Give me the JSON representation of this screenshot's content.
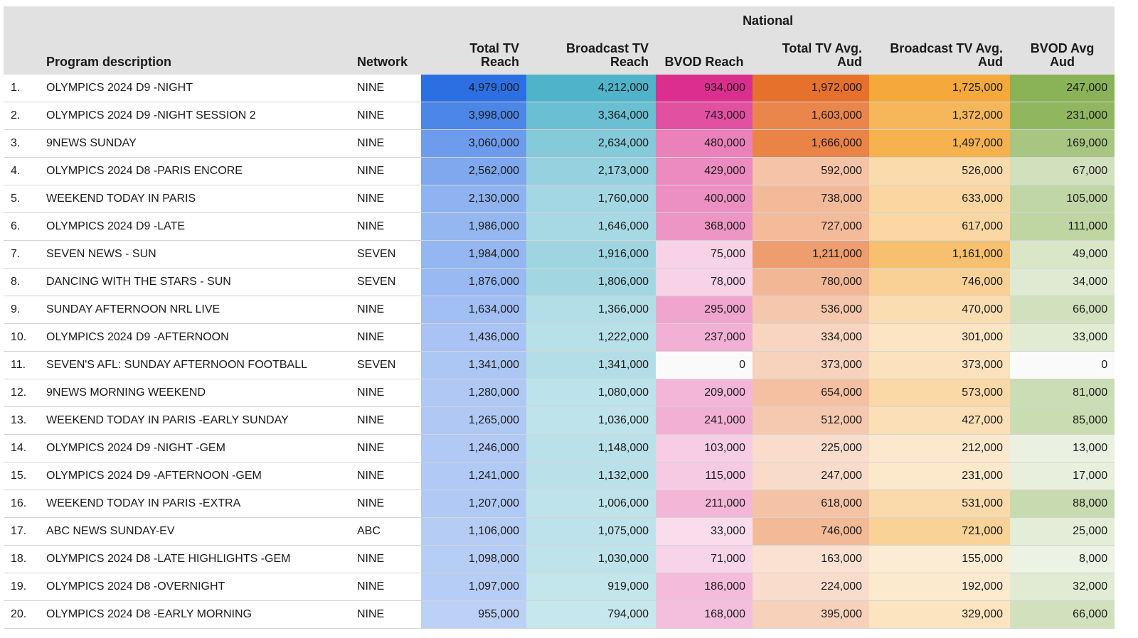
{
  "group_header": "National",
  "columns": [
    "Program description",
    "Network",
    "Total TV Reach",
    "Broadcast TV Reach",
    "BVOD Reach",
    "Total TV Avg. Aud",
    "Broadcast TV Avg. Aud",
    "BVOD Avg Aud"
  ],
  "column_colors": [
    "#2b6fe3",
    "#4fb3c9",
    "#dc2e8e",
    "#e6712c",
    "#f4a93a",
    "#8ab256"
  ],
  "rows": [
    {
      "rank": "1.",
      "program": "OLYMPICS 2024 D9 -NIGHT",
      "network": "NINE",
      "values": [
        "4,979,000",
        "4,212,000",
        "934,000",
        "1,972,000",
        "1,725,000",
        "247,000"
      ]
    },
    {
      "rank": "2.",
      "program": "OLYMPICS 2024 D9 -NIGHT SESSION 2",
      "network": "NINE",
      "values": [
        "3,998,000",
        "3,364,000",
        "743,000",
        "1,603,000",
        "1,372,000",
        "231,000"
      ]
    },
    {
      "rank": "3.",
      "program": "9NEWS SUNDAY",
      "network": "NINE",
      "values": [
        "3,060,000",
        "2,634,000",
        "480,000",
        "1,666,000",
        "1,497,000",
        "169,000"
      ]
    },
    {
      "rank": "4.",
      "program": "OLYMPICS 2024 D8 -PARIS ENCORE",
      "network": "NINE",
      "values": [
        "2,562,000",
        "2,173,000",
        "429,000",
        "592,000",
        "526,000",
        "67,000"
      ]
    },
    {
      "rank": "5.",
      "program": "WEEKEND TODAY IN PARIS",
      "network": "NINE",
      "values": [
        "2,130,000",
        "1,760,000",
        "400,000",
        "738,000",
        "633,000",
        "105,000"
      ]
    },
    {
      "rank": "6.",
      "program": "OLYMPICS 2024 D9 -LATE",
      "network": "NINE",
      "values": [
        "1,986,000",
        "1,646,000",
        "368,000",
        "727,000",
        "617,000",
        "111,000"
      ]
    },
    {
      "rank": "7.",
      "program": "SEVEN NEWS - SUN",
      "network": "SEVEN",
      "values": [
        "1,984,000",
        "1,916,000",
        "75,000",
        "1,211,000",
        "1,161,000",
        "49,000"
      ]
    },
    {
      "rank": "8.",
      "program": "DANCING WITH THE STARS - SUN",
      "network": "SEVEN",
      "values": [
        "1,876,000",
        "1,806,000",
        "78,000",
        "780,000",
        "746,000",
        "34,000"
      ]
    },
    {
      "rank": "9.",
      "program": "SUNDAY AFTERNOON NRL LIVE",
      "network": "NINE",
      "values": [
        "1,634,000",
        "1,366,000",
        "295,000",
        "536,000",
        "470,000",
        "66,000"
      ]
    },
    {
      "rank": "10.",
      "program": "OLYMPICS 2024 D9 -AFTERNOON",
      "network": "NINE",
      "values": [
        "1,436,000",
        "1,222,000",
        "237,000",
        "334,000",
        "301,000",
        "33,000"
      ]
    },
    {
      "rank": "11.",
      "program": "SEVEN'S AFL: SUNDAY AFTERNOON FOOTBALL",
      "network": "SEVEN",
      "values": [
        "1,341,000",
        "1,341,000",
        "0",
        "373,000",
        "373,000",
        "0"
      ]
    },
    {
      "rank": "12.",
      "program": "9NEWS MORNING WEEKEND",
      "network": "NINE",
      "values": [
        "1,280,000",
        "1,080,000",
        "209,000",
        "654,000",
        "573,000",
        "81,000"
      ]
    },
    {
      "rank": "13.",
      "program": "WEEKEND TODAY IN PARIS -EARLY SUNDAY",
      "network": "NINE",
      "values": [
        "1,265,000",
        "1,036,000",
        "241,000",
        "512,000",
        "427,000",
        "85,000"
      ]
    },
    {
      "rank": "14.",
      "program": "OLYMPICS 2024 D9 -NIGHT -GEM",
      "network": "NINE",
      "values": [
        "1,246,000",
        "1,148,000",
        "103,000",
        "225,000",
        "212,000",
        "13,000"
      ]
    },
    {
      "rank": "15.",
      "program": "OLYMPICS 2024 D9 -AFTERNOON -GEM",
      "network": "NINE",
      "values": [
        "1,241,000",
        "1,132,000",
        "115,000",
        "247,000",
        "231,000",
        "17,000"
      ]
    },
    {
      "rank": "16.",
      "program": "WEEKEND TODAY IN PARIS -EXTRA",
      "network": "NINE",
      "values": [
        "1,207,000",
        "1,006,000",
        "211,000",
        "618,000",
        "531,000",
        "88,000"
      ]
    },
    {
      "rank": "17.",
      "program": "ABC NEWS SUNDAY-EV",
      "network": "ABC",
      "values": [
        "1,106,000",
        "1,075,000",
        "33,000",
        "746,000",
        "721,000",
        "25,000"
      ]
    },
    {
      "rank": "18.",
      "program": "OLYMPICS 2024 D8 -LATE HIGHLIGHTS -GEM",
      "network": "NINE",
      "values": [
        "1,098,000",
        "1,030,000",
        "71,000",
        "163,000",
        "155,000",
        "8,000"
      ]
    },
    {
      "rank": "19.",
      "program": "OLYMPICS 2024 D8 -OVERNIGHT",
      "network": "NINE",
      "values": [
        "1,097,000",
        "919,000",
        "186,000",
        "224,000",
        "192,000",
        "32,000"
      ]
    },
    {
      "rank": "20.",
      "program": "OLYMPICS 2024 D8 -EARLY MORNING",
      "network": "NINE",
      "values": [
        "955,000",
        "794,000",
        "168,000",
        "395,000",
        "329,000",
        "66,000"
      ]
    }
  ]
}
